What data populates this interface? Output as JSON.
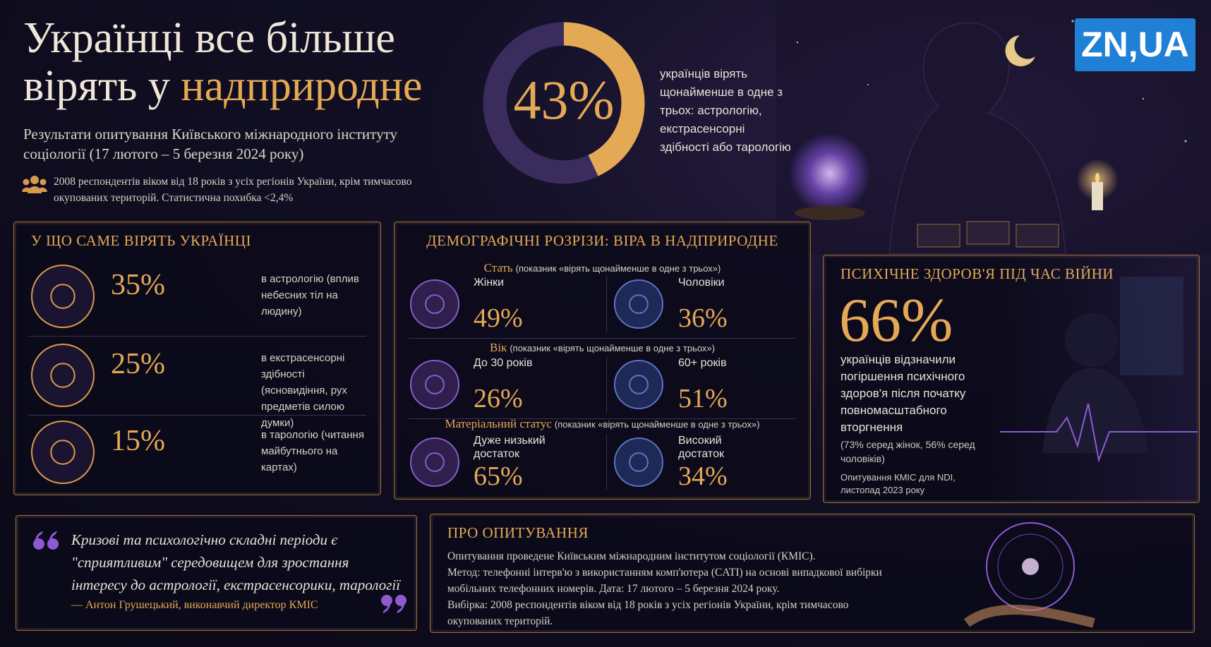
{
  "header": {
    "title_line1": "Українці все більше",
    "title_line2": "вірять у",
    "title_highlight": "надприродне",
    "subtitle": "Результати опитування Київського міжнародного інституту соціології (17 лютого – 5 березня 2024 року)",
    "sample_note": "2008 респондентів віком від 18 років з усіх регіонів України, крім тимчасово окупованих територій. Статистична похибка <2,4%"
  },
  "logo": "ZN,UA",
  "headline_stat": {
    "value": 43,
    "label": "43%",
    "text": "українців вірять щонайменше в одне з трьох: астрологію, екстрасенсорні здібності або тарологію"
  },
  "beliefs": {
    "title": "У ЩО САМЕ ВІРЯТЬ УКРАЇНЦІ",
    "items": [
      {
        "value": 35,
        "label": "35%",
        "text": "в астрологію (вплив небесних тіл на людину)"
      },
      {
        "value": 25,
        "label": "25%",
        "text": "в екстрасенсорні здібності (ясновидіння, рух предметів силою думки)"
      },
      {
        "value": 15,
        "label": "15%",
        "text": "в тарологію (читання майбутнього на картах)"
      }
    ]
  },
  "demographics": {
    "title": "ДЕМОГРАФІЧНІ РОЗРІЗИ: ВІРА В НАДПРИРОДНЕ",
    "groups": [
      {
        "name": "Стать",
        "note": "(показник «вірять щонайменше в одне з трьох»)",
        "items": [
          {
            "name": "Жінки",
            "value": 49,
            "label": "49%"
          },
          {
            "name": "Чоловіки",
            "value": 36,
            "label": "36%"
          }
        ]
      },
      {
        "name": "Вік",
        "note": "(показник «вірять щонайменше в одне з трьох»)",
        "items": [
          {
            "name": "До 30 років",
            "value": 26,
            "label": "26%"
          },
          {
            "name": "60+ років",
            "value": 51,
            "label": "51%"
          }
        ]
      },
      {
        "name": "Матеріальний статус",
        "note": "(показник «вірять щонайменше в одне з трьох»)",
        "items": [
          {
            "name": "Дуже низький достаток",
            "value": 65,
            "label": "65%"
          },
          {
            "name": "Високий достаток",
            "value": 34,
            "label": "34%"
          }
        ]
      }
    ]
  },
  "mental_health": {
    "title": "ПСИХІЧНЕ ЗДОРОВ'Я ПІД ЧАС ВІЙНИ",
    "value": 66,
    "label": "66%",
    "text": "українців відзначили погіршення психічного здоров'я після початку повномасштабного вторгнення",
    "breakdown": "(73% серед жінок, 56% серед чоловіків)",
    "source": "Опитування КМІС для NDI, листопад 2023 року"
  },
  "quote": {
    "text": "Кризові та психологічно складні періоди є \"сприятливим\" середовищем для зростання інтересу до астрології, екстрасенсорики, тарології",
    "author": "— Антон Грушецький, виконавчий директор КМІС"
  },
  "about": {
    "title": "ПРО ОПИТУВАННЯ",
    "lines": [
      "Опитування проведене Київським міжнародним інститутом соціології (КМІС).",
      "Метод: телефонні інтерв'ю з використанням комп'ютера (CATI) на основі випадкової вибірки мобільних телефонних номерів. Дата: 17 лютого – 5 березня 2024 року.",
      "Вибірка: 2008 респондентів віком від 18 років з усіх регіонів України, крім тимчасово окупованих територій."
    ]
  }
}
